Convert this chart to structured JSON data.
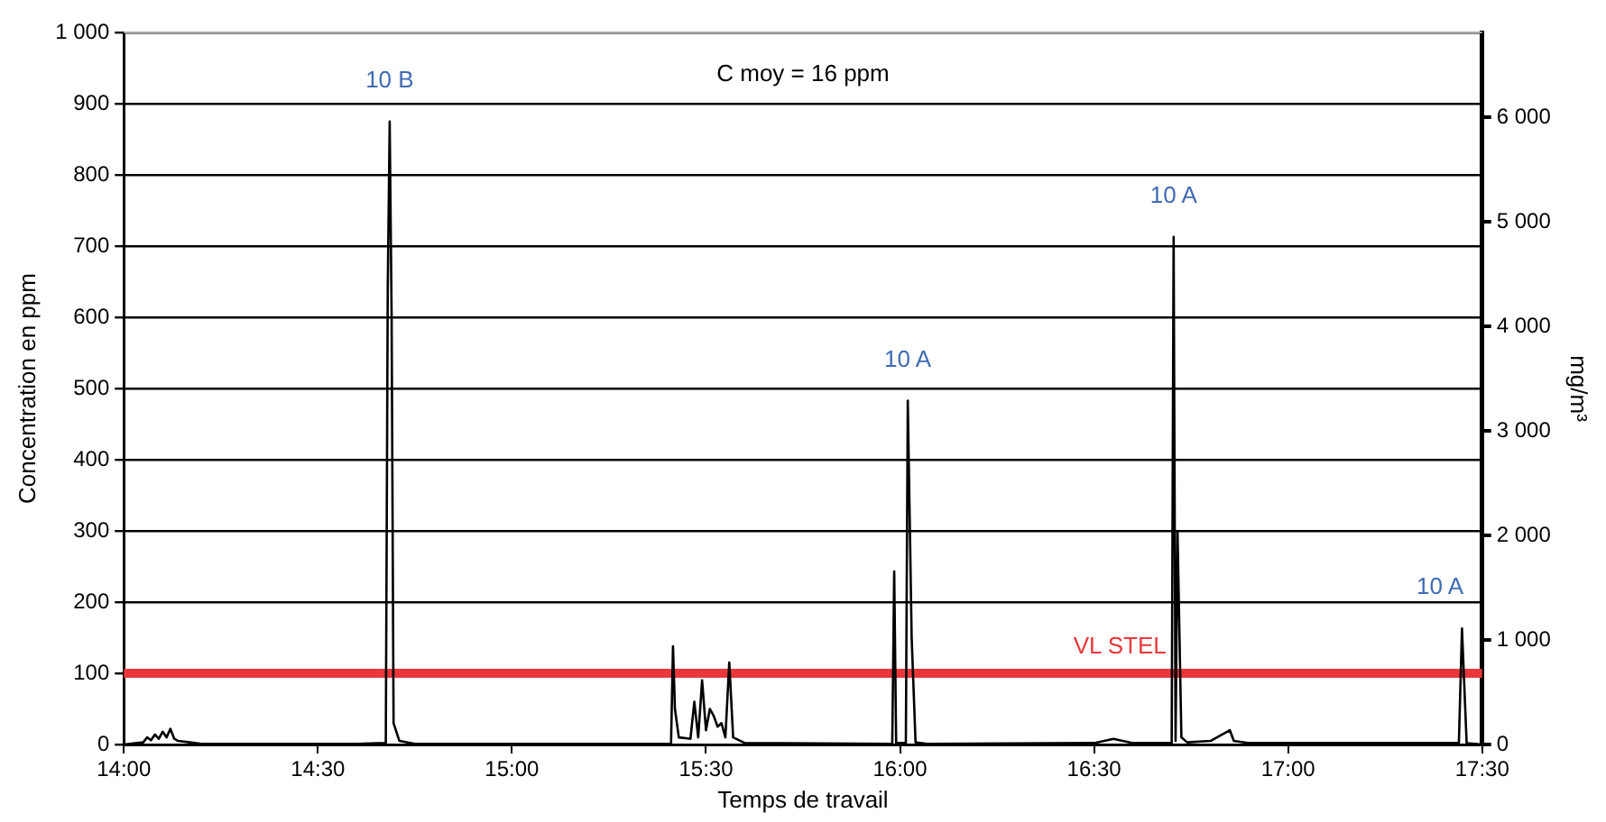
{
  "chart_data": {
    "type": "line",
    "xlabel": "Temps de travail",
    "ylabel": "Concentration en ppm",
    "y2label": "mg/m³",
    "x": [
      14.0,
      14.05,
      14.06,
      14.07,
      14.08,
      14.09,
      14.1,
      14.11,
      14.12,
      14.13,
      14.14,
      14.17,
      14.2,
      14.3,
      14.6,
      14.675,
      14.68,
      14.685,
      14.69,
      14.695,
      14.71,
      14.75,
      15.0,
      15.41,
      15.415,
      15.42,
      15.43,
      15.46,
      15.47,
      15.48,
      15.49,
      15.5,
      15.51,
      15.52,
      15.53,
      15.54,
      15.55,
      15.56,
      15.57,
      15.6,
      15.98,
      15.985,
      15.99,
      16.015,
      16.02,
      16.03,
      16.04,
      16.07,
      16.5,
      16.55,
      16.6,
      16.7,
      16.705,
      16.71,
      16.715,
      16.725,
      16.74,
      16.8,
      16.85,
      16.86,
      16.9,
      17.2,
      17.44,
      17.448,
      17.46,
      17.5
    ],
    "series": [
      {
        "color": "#000000",
        "values": [
          0,
          3,
          10,
          6,
          14,
          8,
          18,
          10,
          22,
          8,
          5,
          3,
          1,
          1,
          1,
          2,
          640,
          875,
          600,
          30,
          5,
          1,
          1,
          1,
          138,
          50,
          10,
          8,
          60,
          10,
          90,
          20,
          50,
          40,
          25,
          30,
          10,
          115,
          10,
          2,
          1,
          243,
          2,
          2,
          483,
          150,
          3,
          1,
          2,
          8,
          2,
          2,
          713,
          5,
          300,
          10,
          3,
          5,
          20,
          5,
          2,
          2,
          2,
          163,
          2,
          0
        ]
      }
    ],
    "xlim": [
      14,
      17.5
    ],
    "xticks": [
      {
        "value": 14,
        "label": "14:00"
      },
      {
        "value": 14.5,
        "label": "14:30"
      },
      {
        "value": 15,
        "label": "15:00"
      },
      {
        "value": 15.5,
        "label": "15:30"
      },
      {
        "value": 16,
        "label": "16:00"
      },
      {
        "value": 16.5,
        "label": "16:30"
      },
      {
        "value": 17,
        "label": "17:00"
      },
      {
        "value": 17.5,
        "label": "17:30"
      }
    ],
    "ylim": [
      0,
      1000
    ],
    "yticks": [
      0,
      100,
      200,
      300,
      400,
      500,
      600,
      700,
      800,
      900,
      {
        "value": 1000,
        "label": "1 000"
      }
    ],
    "y2lim": [
      0,
      6810
    ],
    "y2ticks": [
      0,
      {
        "value": 1000,
        "label": "1 000"
      },
      {
        "value": 2000,
        "label": "2 000"
      },
      {
        "value": 3000,
        "label": "3 000"
      },
      {
        "value": 4000,
        "label": "4 000"
      },
      {
        "value": 5000,
        "label": "5 000"
      },
      {
        "value": 6000,
        "label": "6 000"
      }
    ],
    "ref_lines": [
      {
        "axis": "y",
        "value": 100,
        "label": "VL STEL",
        "color": "#e8383b"
      }
    ],
    "annotations": [
      "C moy = 16 ppm",
      {
        "text": "10 B",
        "x": 14.685,
        "y": 875
      },
      {
        "text": "10 A",
        "x": 16.02,
        "y": 483
      },
      {
        "text": "10 A",
        "x": 16.705,
        "y": 713
      },
      {
        "text": "10 A",
        "x": 17.448,
        "y": 163
      }
    ],
    "grid": "y",
    "legend": false,
    "marker": "none",
    "line_style": "solid"
  }
}
